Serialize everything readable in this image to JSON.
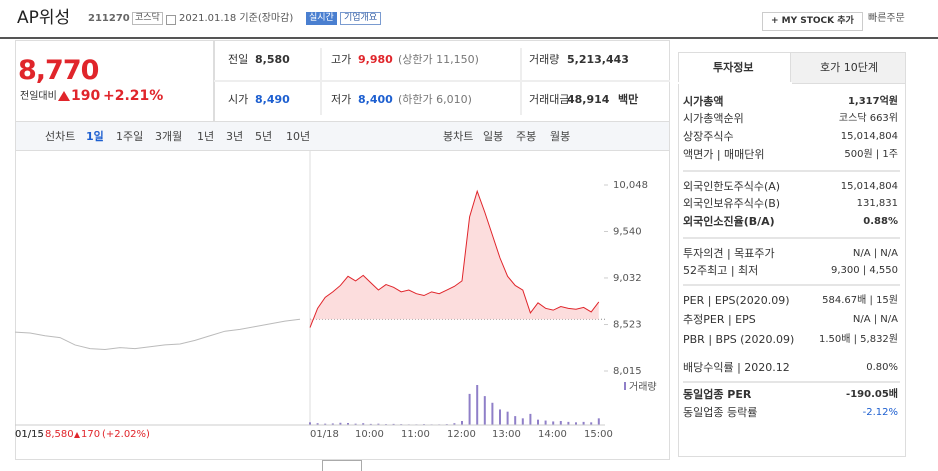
{
  "header": {
    "name": "AP위성",
    "code": "211270",
    "market": "코스닥",
    "date": "2021.01.18 기준(장마감)",
    "realtime": "실시간",
    "company_info": "기업개요",
    "mystock": "+ MY STOCK 추가",
    "quick_order": "빠른주문"
  },
  "quote": {
    "price": "8,770",
    "change_label": "전일대비",
    "change": "190",
    "rate": "+2.21%",
    "items": [
      {
        "label": "전일",
        "value": "8,580"
      },
      {
        "label": "고가",
        "value": "9,980",
        "note": "(상한가 11,150)"
      },
      {
        "label": "거래량",
        "value": "5,213,443"
      },
      {
        "label": "시가",
        "value": "8,490"
      },
      {
        "label": "저가",
        "value": "8,400",
        "note": "(하한가 6,010)"
      },
      {
        "label": "거래대금",
        "value": "48,914",
        "unit": "백만"
      }
    ]
  },
  "tabs": {
    "line_label": "선차트",
    "line": [
      "1일",
      "1주일",
      "3개월",
      "1년",
      "3년",
      "5년",
      "10년"
    ],
    "candle_label": "봉차트",
    "candle": [
      "일봉",
      "주봉",
      "월봉"
    ]
  },
  "chart": {
    "ylim": [
      8015,
      10048
    ],
    "yticks": [
      {
        "value": 10048,
        "label": "10,048"
      },
      {
        "value": 9540,
        "label": "9,540"
      },
      {
        "value": 9032,
        "label": "9,032"
      },
      {
        "value": 8523,
        "label": "8,523"
      },
      {
        "value": 8015,
        "label": "8,015"
      }
    ],
    "reference": 8580,
    "xlabels": [
      "01/15",
      "01/18",
      "10:00",
      "11:00",
      "12:00",
      "13:00",
      "14:00",
      "15:00"
    ],
    "prev": [
      8440,
      8430,
      8400,
      8380,
      8300,
      8260,
      8250,
      8270,
      8260,
      8280,
      8300,
      8310,
      8350,
      8400,
      8450,
      8470,
      8500,
      8530,
      8560,
      8580
    ],
    "today": [
      8490,
      8700,
      8820,
      8880,
      8950,
      9050,
      9000,
      9060,
      8980,
      8900,
      8960,
      8930,
      8880,
      8900,
      8860,
      8840,
      8880,
      8860,
      8900,
      8940,
      9000,
      9700,
      9980,
      9750,
      9500,
      9250,
      9050,
      8950,
      8900,
      8650,
      8760,
      8700,
      8680,
      8720,
      8700,
      8690,
      8710,
      8660,
      8770
    ],
    "volume_label": "거래량",
    "volume": [
      60000,
      40000,
      30000,
      35000,
      50000,
      45000,
      30000,
      40000,
      25000,
      30000,
      20000,
      25000,
      20000,
      15000,
      15000,
      20000,
      15000,
      15000,
      20000,
      40000,
      90000,
      700000,
      900000,
      650000,
      500000,
      350000,
      300000,
      200000,
      150000,
      250000,
      120000,
      100000,
      80000,
      90000,
      70000,
      60000,
      70000,
      60000,
      150000
    ],
    "footer": {
      "date": "01/15",
      "price": "8,580",
      "change": "170",
      "rate": "(+2.02%)"
    }
  },
  "invest": {
    "tabs": [
      "투자정보",
      "호가 10단계"
    ],
    "rows": [
      {
        "label": "시가총액",
        "value": "1,317억원"
      },
      {
        "label": "시가총액순위",
        "value": "코스닥 663위"
      },
      {
        "label": "상장주식수",
        "value": "15,014,804"
      },
      {
        "label": "액면가 | 매매단위",
        "value": "500원 | 1주"
      },
      {
        "label": "외국인한도주식수(A)",
        "value": "15,014,804"
      },
      {
        "label": "외국인보유주식수(B)",
        "value": "131,831"
      },
      {
        "label": "외국인소진율(B/A)",
        "value": "0.88%"
      },
      {
        "label": "투자의견 | 목표주가",
        "value": "N/A | N/A"
      },
      {
        "label": "52주최고 | 최저",
        "value": "9,300 | 4,550"
      },
      {
        "label": "PER | EPS(2020.09)",
        "value": "584.67배 | 15원"
      },
      {
        "label": "추정PER | EPS",
        "value": "N/A | N/A"
      },
      {
        "label": "PBR | BPS (2020.09)",
        "value": "1.50배 | 5,832원"
      },
      {
        "label": "배당수익률 | 2020.12",
        "value": "0.80%"
      },
      {
        "label": "동일업종 PER",
        "value": "-190.05배"
      },
      {
        "label": "동일업종 등락률",
        "value": "-2.12%"
      }
    ]
  }
}
